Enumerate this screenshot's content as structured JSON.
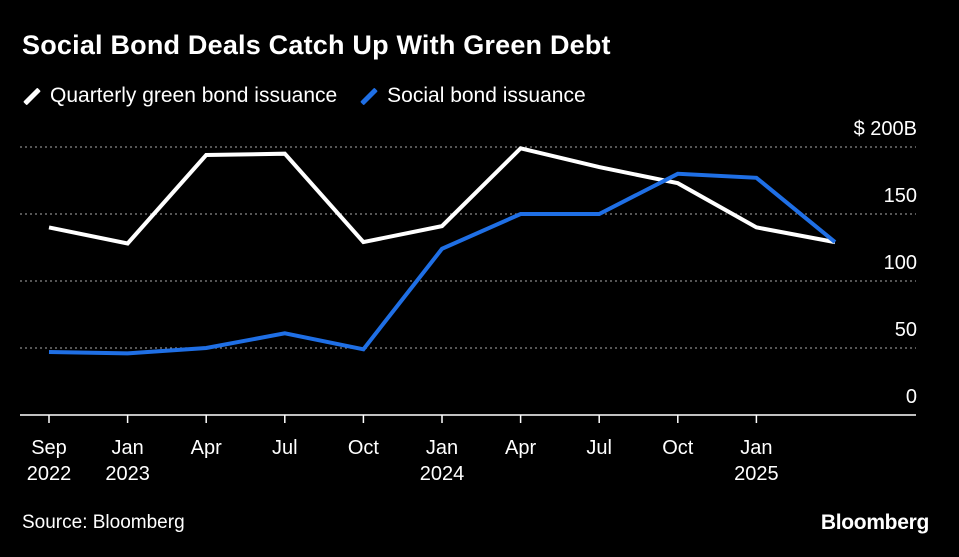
{
  "title": "Social Bond Deals Catch Up With Green Debt",
  "source": "Source: Bloomberg",
  "brand": "Bloomberg",
  "colors": {
    "green_series": "#ffffff",
    "social_series": "#1f6fe5",
    "grid": "#888888",
    "background": "#000000"
  },
  "chart_data": {
    "type": "line",
    "title": "Social Bond Deals Catch Up With Green Debt",
    "xlabel": "",
    "ylabel": "",
    "ylim": [
      0,
      200
    ],
    "y_ticks": [
      {
        "value": 200,
        "label": "$ 200B"
      },
      {
        "value": 150,
        "label": "150"
      },
      {
        "value": 100,
        "label": "100"
      },
      {
        "value": 50,
        "label": "50"
      },
      {
        "value": 0,
        "label": "0"
      }
    ],
    "x_ticks": [
      {
        "index": 0,
        "line1": "Sep",
        "line2": "2022"
      },
      {
        "index": 1,
        "line1": "Jan",
        "line2": "2023"
      },
      {
        "index": 2,
        "line1": "Apr",
        "line2": ""
      },
      {
        "index": 3,
        "line1": "Jul",
        "line2": ""
      },
      {
        "index": 4,
        "line1": "Oct",
        "line2": ""
      },
      {
        "index": 5,
        "line1": "Jan",
        "line2": "2024"
      },
      {
        "index": 6,
        "line1": "Apr",
        "line2": ""
      },
      {
        "index": 7,
        "line1": "Jul",
        "line2": ""
      },
      {
        "index": 8,
        "line1": "Oct",
        "line2": ""
      },
      {
        "index": 9,
        "line1": "Jan",
        "line2": "2025"
      }
    ],
    "series": [
      {
        "name": "Quarterly green bond issuance",
        "color": "#ffffff",
        "values": [
          140,
          128,
          194,
          195,
          129,
          141,
          199,
          185,
          173,
          140,
          129
        ]
      },
      {
        "name": "Social bond issuance",
        "color": "#1f6fe5",
        "values": [
          47,
          46,
          50,
          61,
          49,
          124,
          150,
          150,
          180,
          177,
          129
        ]
      }
    ]
  }
}
